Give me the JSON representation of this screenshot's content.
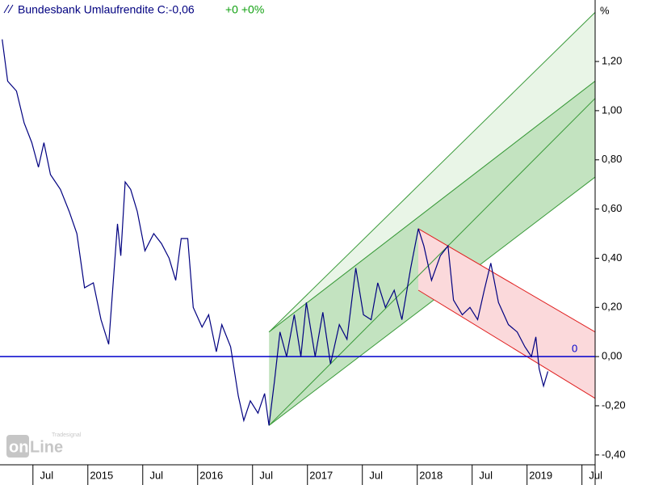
{
  "chart_data": {
    "type": "line",
    "title": "Bundesbank Umlaufrendite C:-0,06",
    "change": "+0 +0%",
    "y_unit": "%",
    "logo": {
      "brand": "Tradesignal",
      "part1": "on",
      "part2": "Line"
    },
    "xlim": [
      2014.2,
      2019.62
    ],
    "ylim": [
      -0.44,
      1.45
    ],
    "xticks": [
      {
        "value": 2014.5,
        "label": "Jul"
      },
      2015,
      {
        "value": 2015.5,
        "label": "Jul"
      },
      2016,
      {
        "value": 2016.5,
        "label": "Jul"
      },
      2017,
      {
        "value": 2017.5,
        "label": "Jul"
      },
      2018,
      {
        "value": 2018.5,
        "label": "Jul"
      },
      2019,
      {
        "value": 2019.5,
        "label": "Jul"
      }
    ],
    "yticks": [
      {
        "value": -0.4,
        "label": "-0,40"
      },
      {
        "value": -0.2,
        "label": "-0,20"
      },
      {
        "value": 0,
        "label": "0,00"
      },
      {
        "value": 0.2,
        "label": "0,20"
      },
      {
        "value": 0.4,
        "label": "0,40"
      },
      {
        "value": 0.6,
        "label": "0,60"
      },
      {
        "value": 0.8,
        "label": "0,80"
      },
      {
        "value": 1.0,
        "label": "1,00"
      },
      {
        "value": 1.2,
        "label": "1,20"
      }
    ],
    "reference_line": {
      "value": 0,
      "color": "#0000cc"
    },
    "series": [
      {
        "name": "Bundesbank Umlaufrendite",
        "color": "#000080",
        "x": [
          2014.22,
          2014.27,
          2014.35,
          2014.42,
          2014.49,
          2014.55,
          2014.6,
          2014.66,
          2014.75,
          2014.83,
          2014.9,
          2014.97,
          2015.05,
          2015.12,
          2015.19,
          2015.27,
          2015.3,
          2015.34,
          2015.39,
          2015.45,
          2015.52,
          2015.6,
          2015.67,
          2015.74,
          2015.8,
          2015.85,
          2015.91,
          2015.96,
          2016.04,
          2016.1,
          2016.17,
          2016.22,
          2016.3,
          2016.37,
          2016.42,
          2016.48,
          2016.55,
          2016.61,
          2016.65,
          2016.7,
          2016.75,
          2016.81,
          2016.88,
          2016.94,
          2016.99,
          2017.07,
          2017.14,
          2017.21,
          2017.29,
          2017.36,
          2017.44,
          2017.51,
          2017.58,
          2017.64,
          2017.71,
          2017.79,
          2017.86,
          2017.94,
          2018.01,
          2018.06,
          2018.13,
          2018.21,
          2018.28,
          2018.33,
          2018.41,
          2018.48,
          2018.55,
          2018.61,
          2018.67,
          2018.74,
          2018.83,
          2018.91,
          2018.98,
          2019.04,
          2019.08,
          2019.11,
          2019.15,
          2019.19
        ],
        "values": [
          1.29,
          1.12,
          1.08,
          0.95,
          0.87,
          0.77,
          0.87,
          0.74,
          0.68,
          0.59,
          0.5,
          0.28,
          0.3,
          0.15,
          0.05,
          0.54,
          0.41,
          0.71,
          0.68,
          0.59,
          0.43,
          0.5,
          0.46,
          0.4,
          0.31,
          0.48,
          0.48,
          0.2,
          0.12,
          0.17,
          0.02,
          0.13,
          0.04,
          -0.16,
          -0.26,
          -0.18,
          -0.23,
          -0.15,
          -0.28,
          -0.1,
          0.1,
          0.0,
          0.17,
          0.0,
          0.22,
          0.0,
          0.18,
          -0.03,
          0.13,
          0.07,
          0.36,
          0.17,
          0.15,
          0.3,
          0.2,
          0.27,
          0.15,
          0.36,
          0.52,
          0.45,
          0.31,
          0.41,
          0.45,
          0.23,
          0.17,
          0.2,
          0.15,
          0.27,
          0.38,
          0.22,
          0.13,
          0.1,
          0.04,
          0.0,
          0.08,
          -0.05,
          -0.12,
          -0.06
        ]
      }
    ],
    "bands": [
      {
        "x": [
          2016.65,
          2019.62
        ],
        "upper": [
          0.1,
          1.4
        ],
        "lower": [
          0.1,
          1.12
        ],
        "color": "#3a9a3a",
        "fill": "#e9f5e7"
      },
      {
        "x": [
          2016.65,
          2019.62
        ],
        "upper": [
          0.1,
          1.12
        ],
        "lower": [
          -0.28,
          0.73
        ],
        "color": "#3a9a3a",
        "fill": "#c3e3c0"
      },
      {
        "x": [
          2018.01,
          2019.62
        ],
        "upper": [
          0.52,
          0.1
        ],
        "lower": [
          0.27,
          -0.17
        ],
        "color": "#e02020",
        "fill": "#fbd9db"
      }
    ],
    "trend_lines": [
      {
        "x": [
          2016.65,
          2019.62
        ],
        "values": [
          -0.28,
          1.05
        ],
        "color": "#3a9a3a"
      }
    ]
  }
}
